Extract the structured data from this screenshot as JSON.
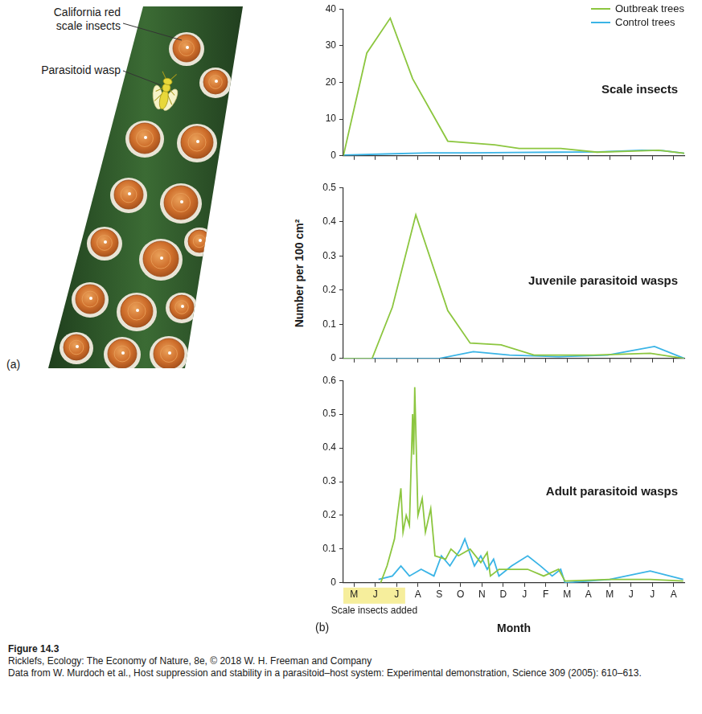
{
  "figure": {
    "panel_a": {
      "label": "(a)",
      "labels": [
        "California red scale insects",
        "Parasitoid wasp"
      ]
    },
    "panel_b": {
      "label": "(b)",
      "y_axis_title": "Number per 100 cm²"
    },
    "caption": [
      "Figure 14.3",
      "Ricklefs, Ecology: The Economy of Nature, 8e, © 2018 W. H. Freeman and Company",
      "Data from W. Murdoch et al., Host suppression and stability in a parasitoid–host system: Experimental demonstration, Science 309 (2005): 610–613."
    ]
  },
  "chart_data": [
    {
      "type": "line",
      "title": "Scale insects",
      "legend": "top right",
      "grid": false,
      "tick_labels": "y",
      "xlim": [
        -0.5,
        15.5
      ],
      "xticks": [
        {
          "value": 0,
          "label": "M"
        },
        {
          "value": 1,
          "label": "J"
        },
        {
          "value": 2,
          "label": "J"
        },
        {
          "value": 3,
          "label": "A"
        },
        {
          "value": 4,
          "label": "S"
        },
        {
          "value": 5,
          "label": "O"
        },
        {
          "value": 6,
          "label": "N"
        },
        {
          "value": 7,
          "label": "D"
        },
        {
          "value": 8,
          "label": "J"
        },
        {
          "value": 9,
          "label": "F"
        },
        {
          "value": 10,
          "label": "M"
        },
        {
          "value": 11,
          "label": "A"
        },
        {
          "value": 12,
          "label": "M"
        },
        {
          "value": 13,
          "label": "J"
        },
        {
          "value": 14,
          "label": "J"
        },
        {
          "value": 15,
          "label": "A"
        }
      ],
      "ylim": [
        0,
        40
      ],
      "yticks": [
        0,
        10,
        20,
        30,
        40
      ],
      "series": [
        {
          "name": "Outbreak trees",
          "color": "#8cc63f",
          "x": [
            -0.5,
            0.6,
            1.7,
            2.75,
            4.4,
            6.6,
            7.75,
            9.7,
            11.4,
            13.15,
            14.3,
            15.5
          ],
          "values": [
            0,
            28,
            37.5,
            21,
            4,
            3,
            2,
            2,
            1,
            1.3,
            1.5,
            0.7
          ]
        },
        {
          "name": "Control trees",
          "color": "#3ab4e6",
          "x": [
            -0.5,
            1.5,
            3.5,
            5.5,
            7.5,
            9.5,
            11.5,
            13.5,
            14.5,
            15.5
          ],
          "values": [
            0.2,
            0.5,
            0.8,
            0.8,
            0.9,
            1,
            1.1,
            1.5,
            1.4,
            0.7
          ]
        }
      ]
    },
    {
      "type": "line",
      "title": "Juvenile parasitoid wasps",
      "grid": false,
      "tick_labels": "y",
      "xlim": [
        -0.5,
        15.5
      ],
      "xticks": [
        {
          "value": 0,
          "label": "M"
        },
        {
          "value": 1,
          "label": "J"
        },
        {
          "value": 2,
          "label": "J"
        },
        {
          "value": 3,
          "label": "A"
        },
        {
          "value": 4,
          "label": "S"
        },
        {
          "value": 5,
          "label": "O"
        },
        {
          "value": 6,
          "label": "N"
        },
        {
          "value": 7,
          "label": "D"
        },
        {
          "value": 8,
          "label": "J"
        },
        {
          "value": 9,
          "label": "F"
        },
        {
          "value": 10,
          "label": "M"
        },
        {
          "value": 11,
          "label": "A"
        },
        {
          "value": 12,
          "label": "M"
        },
        {
          "value": 13,
          "label": "J"
        },
        {
          "value": 14,
          "label": "J"
        },
        {
          "value": 15,
          "label": "A"
        }
      ],
      "ylim": [
        0,
        0.5
      ],
      "yticks": [
        0,
        0.1,
        0.2,
        0.3,
        0.4,
        0.5
      ],
      "series": [
        {
          "name": "Outbreak trees",
          "color": "#8cc63f",
          "x": [
            -0.5,
            0.85,
            1.8,
            2.9,
            4.4,
            5.45,
            6.9,
            8.45,
            11.25,
            13.9,
            15.5
          ],
          "values": [
            0,
            0,
            0.15,
            0.42,
            0.14,
            0.045,
            0.04,
            0.01,
            0.01,
            0.015,
            0
          ]
        },
        {
          "name": "Control trees",
          "color": "#3ab4e6",
          "x": [
            -0.5,
            4.0,
            5.6,
            7.3,
            9.6,
            11.9,
            14.1,
            15.5
          ],
          "values": [
            0,
            0,
            0.02,
            0.01,
            0.005,
            0.01,
            0.035,
            0
          ]
        }
      ]
    },
    {
      "type": "line",
      "title": "Adult parasitoid wasps",
      "grid": false,
      "x_label": "Month",
      "annotations": [
        {
          "text": "Scale insects added",
          "x_range": [
            -0.5,
            2.4
          ]
        }
      ],
      "xlim": [
        -0.5,
        15.5
      ],
      "xticks": [
        {
          "value": 0,
          "label": "M"
        },
        {
          "value": 1,
          "label": "J"
        },
        {
          "value": 2,
          "label": "J"
        },
        {
          "value": 3,
          "label": "A"
        },
        {
          "value": 4,
          "label": "S"
        },
        {
          "value": 5,
          "label": "O"
        },
        {
          "value": 6,
          "label": "N"
        },
        {
          "value": 7,
          "label": "D"
        },
        {
          "value": 8,
          "label": "J"
        },
        {
          "value": 9,
          "label": "F"
        },
        {
          "value": 10,
          "label": "M"
        },
        {
          "value": 11,
          "label": "A"
        },
        {
          "value": 12,
          "label": "M"
        },
        {
          "value": 13,
          "label": "J"
        },
        {
          "value": 14,
          "label": "J"
        },
        {
          "value": 15,
          "label": "A"
        }
      ],
      "ylim": [
        0,
        0.6
      ],
      "yticks": [
        0,
        0.1,
        0.2,
        0.3,
        0.4,
        0.5,
        0.6
      ],
      "series": [
        {
          "name": "Outbreak trees",
          "color": "#8cc63f",
          "x": [
            1.25,
            1.55,
            1.9,
            2.2,
            2.3,
            2.45,
            2.6,
            2.75,
            2.8,
            2.85,
            3.0,
            3.2,
            3.35,
            3.6,
            3.8,
            4.3,
            4.55,
            4.9,
            5.45,
            5.95,
            6.25,
            6.4,
            6.8,
            8.15,
            8.9,
            9.6,
            9.9,
            12.0,
            13.9,
            15.45
          ],
          "values": [
            0,
            0.05,
            0.13,
            0.28,
            0.15,
            0.2,
            0.17,
            0.5,
            0.38,
            0.58,
            0.2,
            0.25,
            0.15,
            0.22,
            0.08,
            0.07,
            0.1,
            0.08,
            0.1,
            0.06,
            0.09,
            0.02,
            0.04,
            0.04,
            0.02,
            0.04,
            0.005,
            0.01,
            0.01,
            0.005
          ]
        },
        {
          "name": "Control trees",
          "color": "#3ab4e6",
          "x": [
            1.15,
            1.8,
            2.2,
            2.6,
            3.15,
            3.75,
            4.1,
            4.5,
            5.0,
            5.2,
            5.65,
            5.95,
            6.25,
            6.55,
            6.8,
            7.4,
            8.15,
            8.75,
            9.3,
            9.7,
            9.9,
            12.0,
            13.9,
            15.45
          ],
          "values": [
            0.01,
            0.02,
            0.05,
            0.02,
            0.04,
            0.02,
            0.08,
            0.05,
            0.1,
            0.13,
            0.05,
            0.08,
            0.04,
            0.07,
            0.02,
            0.05,
            0.08,
            0.05,
            0.02,
            0.04,
            0,
            0.01,
            0.035,
            0.01
          ]
        }
      ]
    }
  ]
}
